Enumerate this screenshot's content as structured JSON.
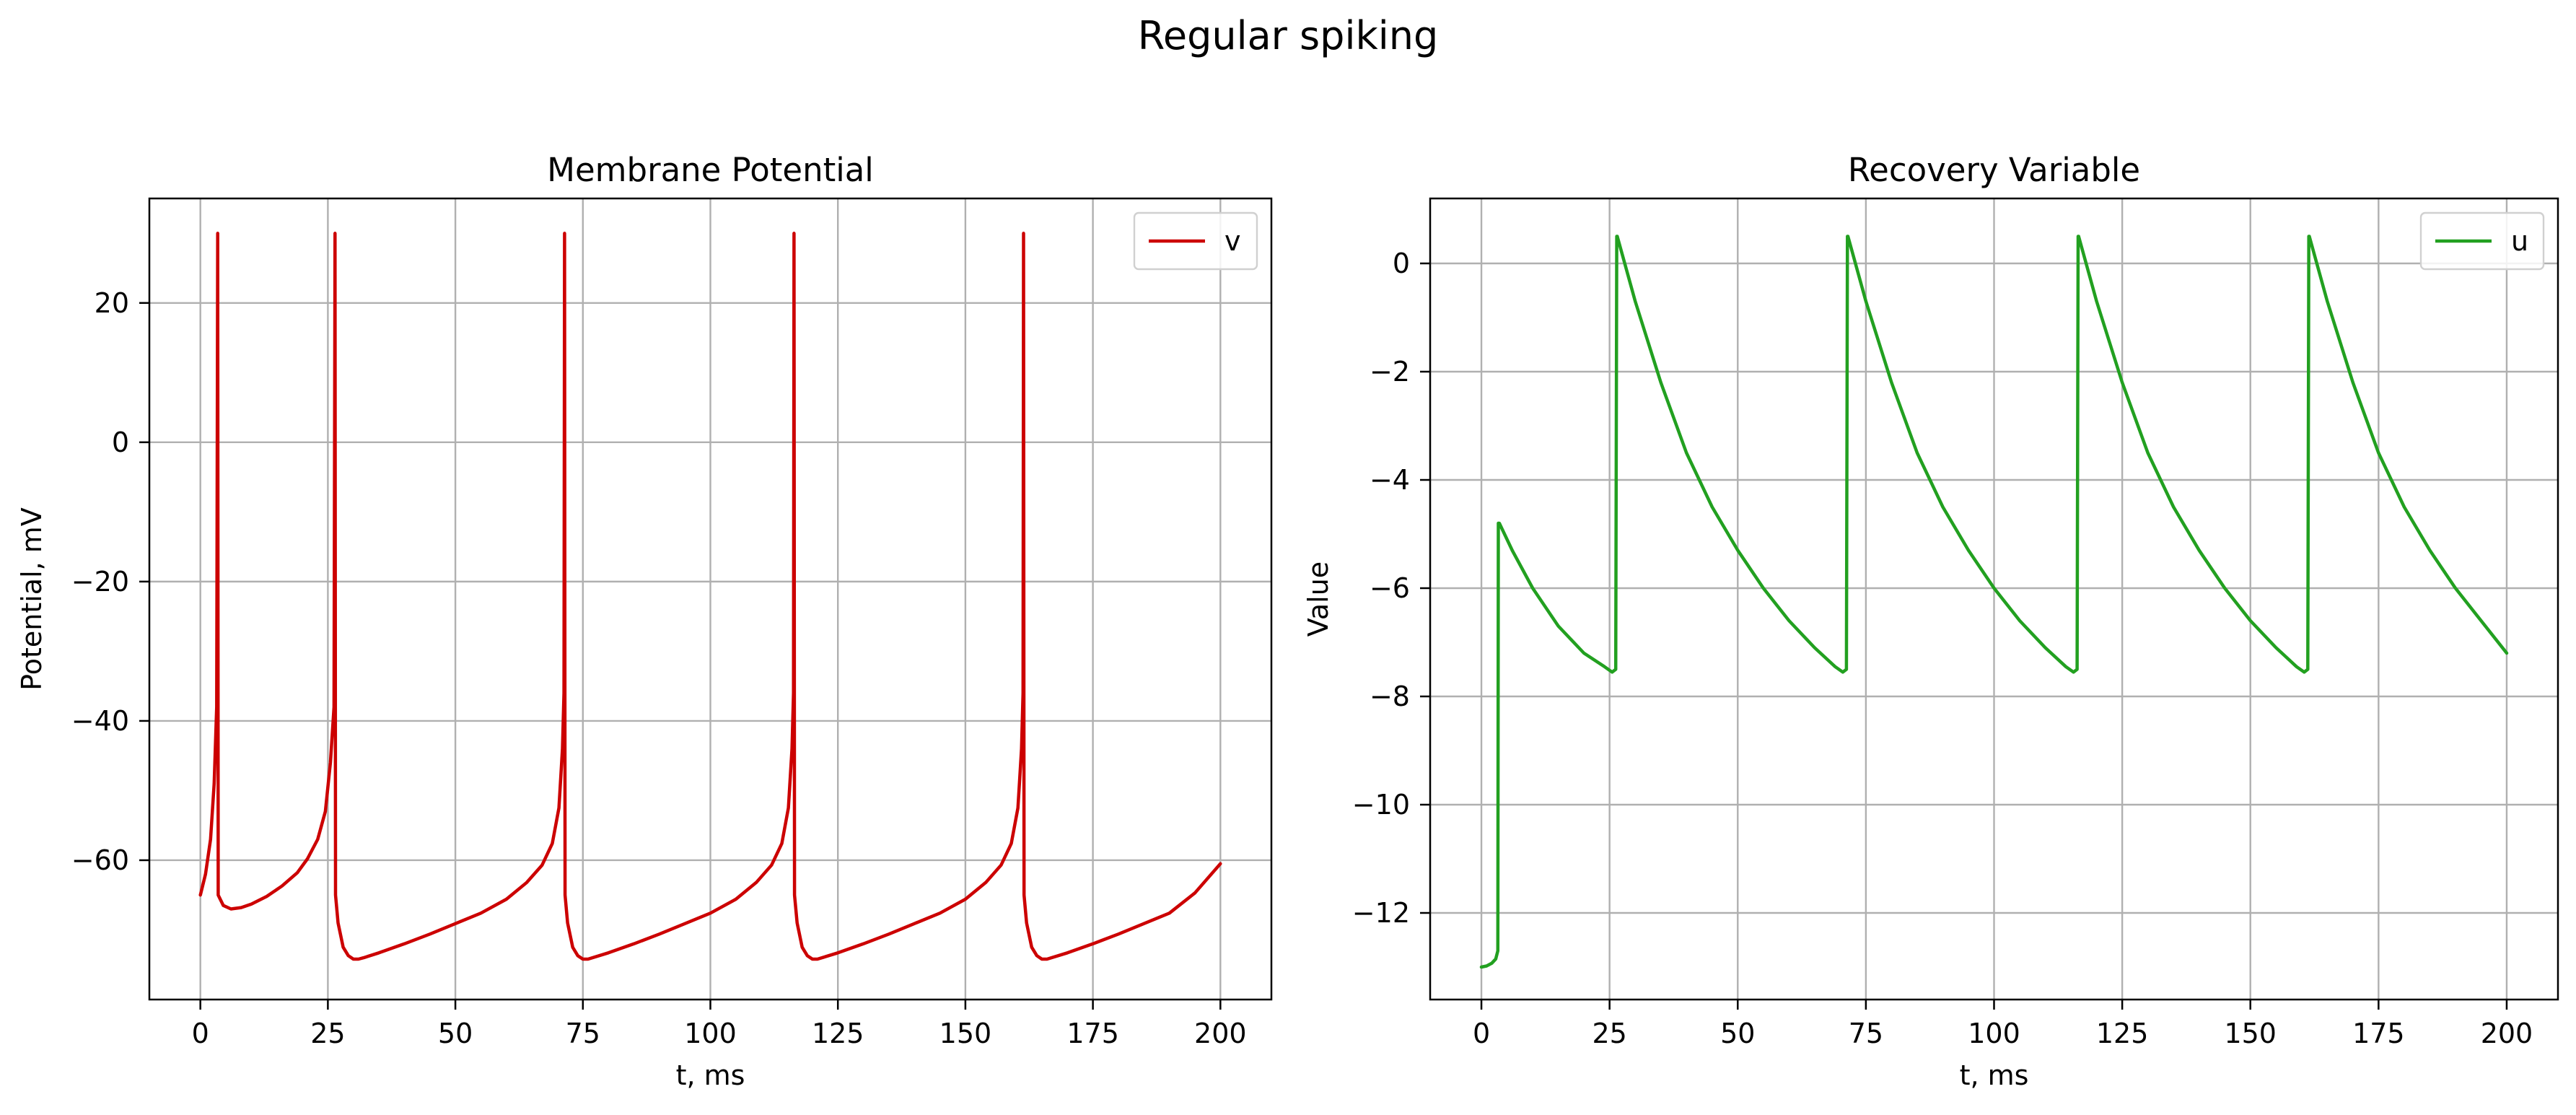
{
  "figure": {
    "suptitle": "Regular spiking"
  },
  "chart_data": [
    {
      "type": "line",
      "title": "Membrane Potential",
      "xlabel": "t, ms",
      "ylabel": "Potential, mV",
      "xlim": [
        -10,
        210
      ],
      "ylim": [
        -80,
        35
      ],
      "xticks": [
        0,
        25,
        50,
        75,
        100,
        125,
        150,
        175,
        200
      ],
      "yticks": [
        -60,
        -40,
        -20,
        0,
        20
      ],
      "grid": true,
      "legend_position": "top-right",
      "series": [
        {
          "name": "v",
          "color": "#cc0000",
          "x": [
            0,
            1,
            2,
            2.7,
            3.2,
            3.4,
            3.5,
            4.5,
            6,
            8,
            10,
            13,
            16,
            19,
            21,
            23,
            24.5,
            25.5,
            26.2,
            26.4,
            26.5,
            27,
            28,
            29,
            30,
            31,
            32,
            35,
            40,
            45,
            50,
            55,
            60,
            64,
            67,
            69,
            70.3,
            71,
            71.3,
            71.4,
            71.5,
            72,
            73,
            74,
            75,
            76,
            80,
            85,
            90,
            95,
            100,
            105,
            109,
            112,
            114,
            115.3,
            116,
            116.3,
            116.4,
            116.5,
            117,
            118,
            119,
            120,
            121,
            125,
            130,
            135,
            140,
            145,
            150,
            154,
            157,
            159,
            160.3,
            161,
            161.3,
            161.4,
            161.5,
            162,
            163,
            164,
            165,
            166,
            170,
            175,
            180,
            185,
            190,
            195,
            200
          ],
          "y": [
            -65,
            -62,
            -57,
            -49,
            -38,
            30,
            -65,
            -66.5,
            -67,
            -66.8,
            -66.3,
            -65.2,
            -63.7,
            -61.8,
            -59.8,
            -57,
            -53,
            -46,
            -38,
            30,
            -65,
            -69,
            -72.5,
            -73.7,
            -74.2,
            -74.2,
            -74,
            -73.3,
            -72,
            -70.6,
            -69.1,
            -67.6,
            -65.6,
            -63.2,
            -60.7,
            -57.6,
            -52.5,
            -44,
            -36,
            30,
            -65,
            -69,
            -72.5,
            -73.7,
            -74.2,
            -74.2,
            -73.3,
            -72,
            -70.6,
            -69.1,
            -67.6,
            -65.6,
            -63.2,
            -60.7,
            -57.6,
            -52.5,
            -44,
            -36,
            30,
            -65,
            -69,
            -72.5,
            -73.7,
            -74.2,
            -74.2,
            -73.3,
            -72,
            -70.6,
            -69.1,
            -67.6,
            -65.6,
            -63.2,
            -60.7,
            -57.6,
            -52.5,
            -44,
            -36,
            30,
            -65,
            -69,
            -72.5,
            -73.7,
            -74.2,
            -74.2,
            -73.3,
            -72,
            -70.6,
            -69.1,
            -67.6,
            -64.7,
            -60.5
          ]
        }
      ]
    },
    {
      "type": "line",
      "title": "Recovery Variable",
      "xlabel": "t, ms",
      "ylabel": "Value",
      "xlim": [
        -10,
        210
      ],
      "ylim": [
        -13.6,
        1.2
      ],
      "xticks": [
        0,
        25,
        50,
        75,
        100,
        125,
        150,
        175,
        200
      ],
      "yticks": [
        -12,
        -10,
        -8,
        -6,
        -4,
        -2,
        0
      ],
      "grid": true,
      "legend_position": "top-right",
      "series": [
        {
          "name": "u",
          "color": "#22a020",
          "x": [
            0,
            1,
            2,
            2.8,
            3.2,
            3.3,
            3.5,
            6,
            10,
            15,
            20,
            24,
            25.5,
            26.2,
            26.4,
            26.5,
            30,
            35,
            40,
            45,
            50,
            55,
            60,
            65,
            69,
            70.5,
            71.2,
            71.4,
            71.5,
            75,
            80,
            85,
            90,
            95,
            100,
            105,
            110,
            114,
            115.5,
            116.2,
            116.4,
            116.5,
            120,
            125,
            130,
            135,
            140,
            145,
            150,
            155,
            159,
            160.5,
            161.2,
            161.4,
            161.5,
            165,
            170,
            175,
            180,
            185,
            190,
            195,
            200
          ],
          "y": [
            -13,
            -12.98,
            -12.93,
            -12.85,
            -12.7,
            -4.8,
            -4.8,
            -5.3,
            -6.0,
            -6.7,
            -7.2,
            -7.45,
            -7.55,
            -7.5,
            0.5,
            0.5,
            -0.7,
            -2.2,
            -3.5,
            -4.5,
            -5.3,
            -6.0,
            -6.6,
            -7.1,
            -7.45,
            -7.55,
            -7.5,
            0.5,
            0.5,
            -0.7,
            -2.2,
            -3.5,
            -4.5,
            -5.3,
            -6.0,
            -6.6,
            -7.1,
            -7.45,
            -7.55,
            -7.5,
            0.5,
            0.5,
            -0.7,
            -2.2,
            -3.5,
            -4.5,
            -5.3,
            -6.0,
            -6.6,
            -7.1,
            -7.45,
            -7.55,
            -7.5,
            0.5,
            0.5,
            -0.7,
            -2.2,
            -3.5,
            -4.5,
            -5.3,
            -6.0,
            -6.6,
            -7.2
          ]
        }
      ]
    }
  ]
}
